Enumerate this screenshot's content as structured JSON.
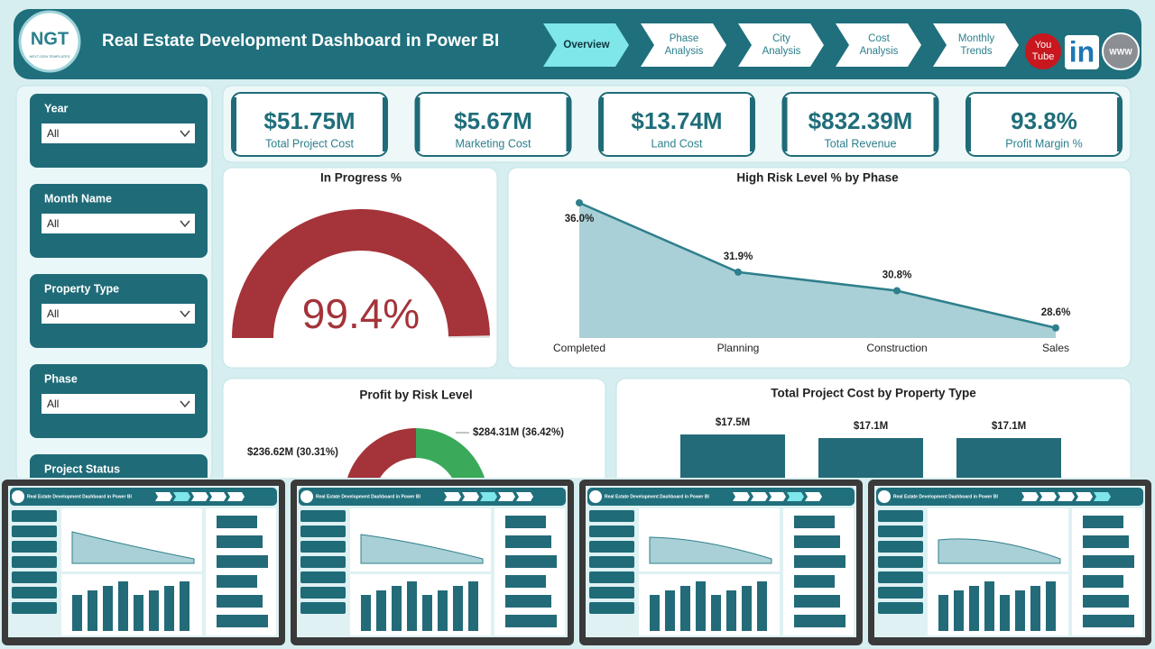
{
  "header": {
    "logo": "NGT",
    "logo_sub": "NEXT-GEN TEMPLATES",
    "title": "Real Estate Development Dashboard in Power BI",
    "nav": [
      [
        "Overview"
      ],
      [
        "Phase",
        "Analysis"
      ],
      [
        "City",
        "Analysis"
      ],
      [
        "Cost",
        "Analysis"
      ],
      [
        "Monthly",
        "Trends"
      ]
    ],
    "social": {
      "youtube": [
        "You",
        "Tube"
      ],
      "linkedin": "in",
      "web": "WWW"
    }
  },
  "filters": [
    {
      "label": "Year",
      "value": "All"
    },
    {
      "label": "Month Name",
      "value": "All"
    },
    {
      "label": "Property Type",
      "value": "All"
    },
    {
      "label": "Phase",
      "value": "All"
    },
    {
      "label": "Project Status"
    }
  ],
  "kpis": [
    {
      "value": "$51.75M",
      "label": "Total Project Cost"
    },
    {
      "value": "$5.67M",
      "label": "Marketing Cost"
    },
    {
      "value": "$13.74M",
      "label": "Land Cost"
    },
    {
      "value": "$832.39M",
      "label": "Total Revenue"
    },
    {
      "value": "93.8%",
      "label": "Profit Margin %"
    }
  ],
  "gauge": {
    "type": "gauge",
    "title": "In Progress %",
    "value": 99.4,
    "value_label": "99.4%",
    "range": [
      0,
      100
    ],
    "color": "#a4343a"
  },
  "risk_chart": {
    "type": "area",
    "title": "High Risk Level % by Phase",
    "categories": [
      "Completed",
      "Planning",
      "Construction",
      "Sales"
    ],
    "values": [
      36.0,
      31.9,
      30.8,
      28.6
    ],
    "value_labels": [
      "36.0%",
      "31.9%",
      "30.8%",
      "28.6%"
    ],
    "ylim": [
      28,
      36.8
    ],
    "color": "#2f7f8c"
  },
  "profit_chart": {
    "type": "donut",
    "title": "Profit by Risk Level",
    "values": [
      284.31,
      236.62
    ],
    "percents": [
      36.42,
      30.31
    ],
    "value_labels": [
      "$284.31M (36.42%)",
      "$236.62M (30.31%)"
    ],
    "colors": [
      "#3aaa5a",
      "#a4343a"
    ]
  },
  "cost_chart": {
    "type": "bar",
    "title": "Total Project Cost by Property Type",
    "values": [
      17.5,
      17.1,
      17.1
    ],
    "value_labels": [
      "$17.5M",
      "$17.1M",
      "$17.1M"
    ],
    "ylim": [
      0,
      19
    ],
    "color": "#236b78"
  }
}
